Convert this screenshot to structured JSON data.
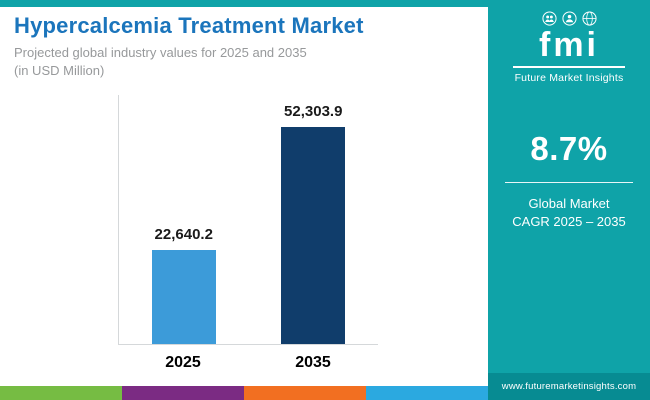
{
  "header": {
    "title": "Hypercalcemia Treatment Market",
    "subtitle": "Projected global industry values for 2025 and 2035",
    "unit_note": "(in USD Million)"
  },
  "logo": {
    "brand": "fmi",
    "company": "Future Market Insights"
  },
  "sidebar": {
    "cagr_value": "8.7%",
    "cagr_line1": "Global Market",
    "cagr_line2": "CAGR 2025 – 2035",
    "website": "www.futuremarketinsights.com"
  },
  "chart_data": {
    "type": "bar",
    "title": "Hypercalcemia Treatment Market",
    "categories": [
      "2025",
      "2035"
    ],
    "values": [
      22640.2,
      52303.9
    ],
    "value_labels": [
      "22,640.2",
      "52,303.9"
    ],
    "xlabel": "",
    "ylabel": "USD Million",
    "ylim": [
      0,
      60000
    ],
    "grid": false,
    "legend": "none",
    "bar_colors": [
      "#3C9BD9",
      "#103D6B"
    ]
  },
  "colors": {
    "teal": "#0FA3A8",
    "teal-dark": "#078B92",
    "title-blue": "#1B75BC",
    "subtitle-gray": "#97999B",
    "axis-gray": "#D5D8DA",
    "text-dark": "#1A1A1A"
  },
  "footer_stripe": [
    "#76BC43",
    "#7B2B83",
    "#F26F21",
    "#2BA9E0"
  ]
}
